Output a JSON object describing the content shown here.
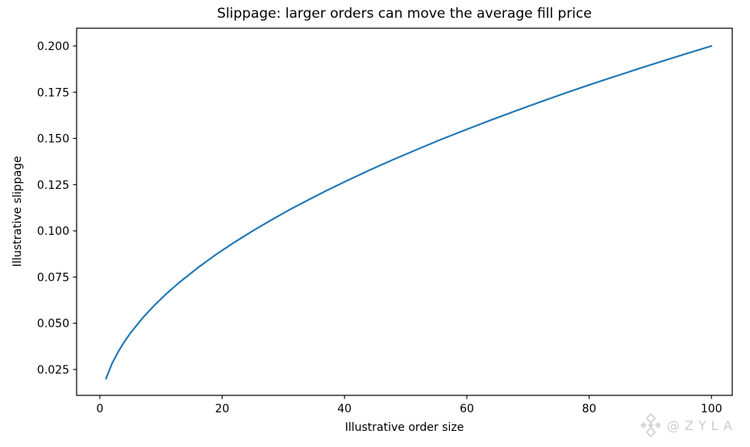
{
  "chart_data": {
    "type": "line",
    "title": "Slippage: larger orders can move the average fill price",
    "xlabel": "Illustrative order size",
    "ylabel": "Illustrative slippage",
    "series": [
      {
        "name": "illustrative-slippage-curve",
        "color": "#1f77b4",
        "x": [
          1,
          2,
          3,
          4,
          5,
          7,
          9,
          11,
          13,
          16,
          19,
          22,
          25,
          28,
          31,
          34,
          37,
          40,
          44,
          48,
          52,
          56,
          60,
          64,
          68,
          72,
          76,
          80,
          84,
          88,
          92,
          96,
          100
        ],
        "y": [
          0.02,
          0.0283,
          0.0346,
          0.04,
          0.0447,
          0.0529,
          0.06,
          0.0663,
          0.0721,
          0.08,
          0.0872,
          0.0938,
          0.1,
          0.1058,
          0.1114,
          0.1166,
          0.1217,
          0.1265,
          0.1327,
          0.1386,
          0.1442,
          0.1497,
          0.1549,
          0.16,
          0.1649,
          0.1697,
          0.1744,
          0.1789,
          0.1833,
          0.1876,
          0.1918,
          0.196,
          0.2
        ]
      }
    ],
    "xlim": [
      -3.8,
      103.4
    ],
    "ylim": [
      0.011,
      0.2096
    ],
    "x_ticks": [
      0,
      20,
      40,
      60,
      80,
      100
    ],
    "x_tick_labels": [
      "0",
      "20",
      "40",
      "60",
      "80",
      "100"
    ],
    "y_ticks": [
      0.025,
      0.05,
      0.075,
      0.1,
      0.125,
      0.15,
      0.175,
      0.2
    ],
    "y_tick_labels": [
      "0.025",
      "0.050",
      "0.075",
      "0.100",
      "0.125",
      "0.150",
      "0.175",
      "0.200"
    ],
    "grid": false,
    "legend": null,
    "line_width": 2.1,
    "frame_color": "#000000",
    "background": "#ffffff"
  },
  "watermark": {
    "text": "@ZYLA",
    "icon": "diamond-logo-icon",
    "color": "#cccccc"
  }
}
